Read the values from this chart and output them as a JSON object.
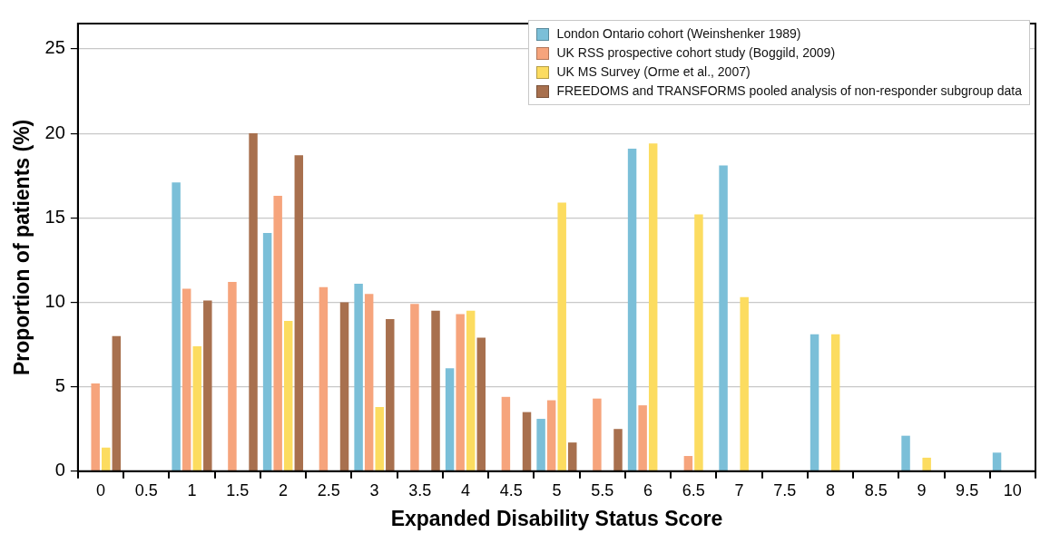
{
  "chart_data": {
    "type": "bar",
    "xlabel": "Expanded Disability Status Score",
    "ylabel": "Proportion of patients (%)",
    "categories": [
      "0",
      "0.5",
      "1",
      "1.5",
      "2",
      "2.5",
      "3",
      "3.5",
      "4",
      "4.5",
      "5",
      "5.5",
      "6",
      "6.5",
      "7",
      "7.5",
      "8",
      "8.5",
      "9",
      "9.5",
      "10"
    ],
    "series": [
      {
        "name": "London Ontario cohort (Weinshenker 1989)",
        "color": "#7bbfd8",
        "values": [
          null,
          null,
          17.1,
          null,
          14.1,
          null,
          11.1,
          null,
          6.1,
          null,
          3.1,
          null,
          19.1,
          null,
          18.1,
          null,
          8.1,
          null,
          2.1,
          null,
          1.1
        ]
      },
      {
        "name": "UK RSS prospective cohort study (Boggild, 2009)",
        "color": "#f6a47c",
        "values": [
          5.2,
          null,
          10.8,
          11.2,
          16.3,
          10.9,
          10.5,
          9.9,
          9.3,
          4.4,
          4.2,
          4.3,
          3.9,
          0.9,
          null,
          null,
          null,
          null,
          null,
          null,
          null
        ]
      },
      {
        "name": "UK MS Survey (Orme et al., 2007)",
        "color": "#fcdc60",
        "values": [
          1.4,
          null,
          7.4,
          null,
          8.9,
          null,
          3.8,
          null,
          9.5,
          null,
          15.9,
          null,
          19.4,
          15.2,
          10.3,
          null,
          8.1,
          null,
          0.8,
          null,
          null
        ]
      },
      {
        "name": "FREEDOMS and TRANSFORMS pooled analysis of non-responder subgroup data",
        "color": "#a8704e",
        "values": [
          8.0,
          null,
          10.1,
          20.0,
          18.7,
          10.0,
          9.0,
          9.5,
          7.9,
          3.5,
          1.7,
          2.5,
          null,
          null,
          null,
          null,
          null,
          null,
          null,
          null,
          null
        ]
      }
    ],
    "ylim": [
      0,
      26.5
    ],
    "yticks": [
      0,
      5,
      10,
      15,
      20,
      25
    ],
    "grid": "y",
    "legend": "top right"
  }
}
